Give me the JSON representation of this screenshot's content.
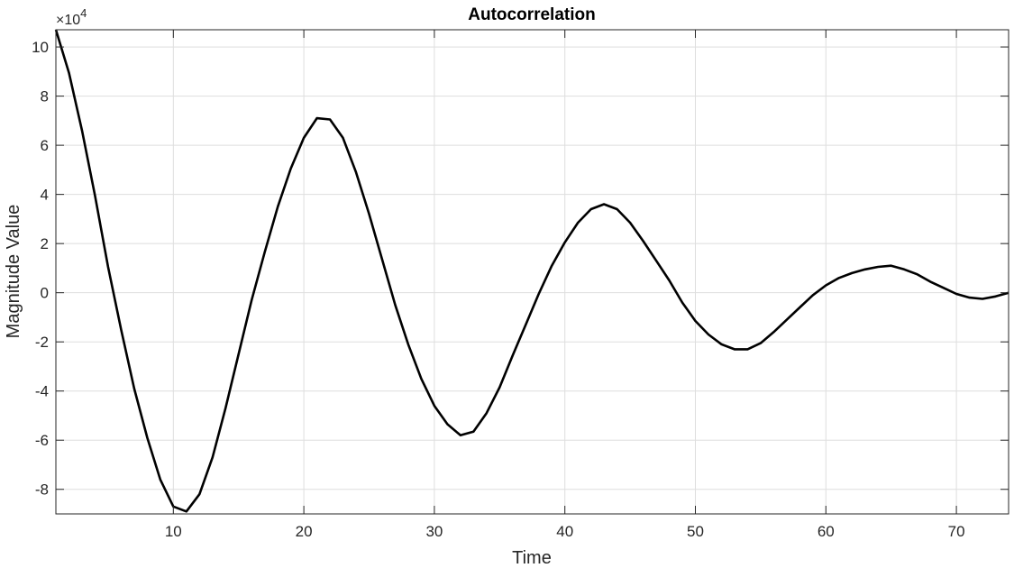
{
  "chart_data": {
    "type": "line",
    "title": "Autocorrelation",
    "xlabel": "Time",
    "ylabel": "Magnitude Value",
    "y_exponent_label": "×10",
    "y_exponent_power": "4",
    "xlim": [
      1,
      74
    ],
    "ylim": [
      -9,
      10.7
    ],
    "grid": true,
    "xticks": [
      10,
      20,
      30,
      40,
      50,
      60,
      70
    ],
    "xtick_labels": [
      "10",
      "20",
      "30",
      "40",
      "50",
      "60",
      "70"
    ],
    "yticks": [
      -8,
      -6,
      -4,
      -2,
      0,
      2,
      4,
      6,
      8,
      10
    ],
    "ytick_labels": [
      "-8",
      "-6",
      "-4",
      "-2",
      "0",
      "2",
      "4",
      "6",
      "8",
      "10"
    ],
    "line_color": "#000000",
    "series": [
      {
        "x": [
          1,
          2,
          3,
          4,
          5,
          6,
          7,
          8,
          9,
          10,
          11,
          12,
          13,
          14,
          15,
          16,
          17,
          18,
          19,
          20,
          21,
          22,
          23,
          24,
          25,
          26,
          27,
          28,
          29,
          30,
          31,
          32,
          33,
          34,
          35,
          36,
          37,
          38,
          39,
          40,
          41,
          42,
          43,
          44,
          45,
          46,
          47,
          48,
          49,
          50,
          51,
          52,
          53,
          54,
          55,
          56,
          57,
          58,
          59,
          60,
          61,
          62,
          63,
          64,
          65,
          66,
          67,
          68,
          69,
          70,
          71,
          72,
          73,
          74
        ],
        "y": [
          10.7,
          8.95,
          6.6,
          3.95,
          1.05,
          -1.5,
          -3.9,
          -5.9,
          -7.6,
          -8.7,
          -8.9,
          -8.2,
          -6.7,
          -4.7,
          -2.5,
          -0.3,
          1.65,
          3.5,
          5.05,
          6.3,
          7.1,
          7.05,
          6.3,
          4.9,
          3.2,
          1.35,
          -0.5,
          -2.1,
          -3.5,
          -4.6,
          -5.35,
          -5.8,
          -5.65,
          -4.9,
          -3.85,
          -2.55,
          -1.3,
          -0.05,
          1.1,
          2.05,
          2.85,
          3.4,
          3.6,
          3.4,
          2.85,
          2.1,
          1.3,
          0.5,
          -0.4,
          -1.15,
          -1.7,
          -2.1,
          -2.3,
          -2.3,
          -2.05,
          -1.6,
          -1.1,
          -0.6,
          -0.1,
          0.3,
          0.6,
          0.8,
          0.95,
          1.05,
          1.1,
          0.95,
          0.75,
          0.45,
          0.2,
          -0.05,
          -0.2,
          -0.25,
          -0.15,
          0.0
        ]
      }
    ]
  }
}
